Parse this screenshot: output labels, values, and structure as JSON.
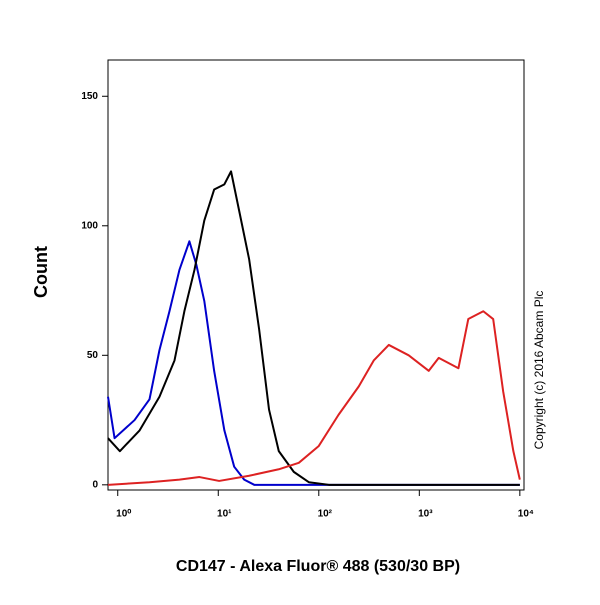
{
  "chart_data": {
    "type": "line",
    "xlabel": "CD147 - Alexa Fluor® 488 (530/30 BP)",
    "ylabel": "Count",
    "annotation": "Copyright (c) 2016 Abcam Plc",
    "xscale": "log",
    "xlim": [
      0.8,
      11000
    ],
    "ylim": [
      -2,
      164
    ],
    "xticks": [
      {
        "value": 1,
        "label": "10⁰"
      },
      {
        "value": 10,
        "label": "10¹"
      },
      {
        "value": 100,
        "label": "10²"
      },
      {
        "value": 1000,
        "label": "10³"
      },
      {
        "value": 10000,
        "label": "10⁴"
      }
    ],
    "yticks": [
      0,
      50,
      100,
      150
    ],
    "series": [
      {
        "color": "#0000cc",
        "x": [
          0.8,
          0.93,
          1.47,
          2.07,
          2.6,
          3.27,
          4.11,
          5.16,
          6.05,
          7.26,
          9.1,
          11.5,
          14.4,
          18.1,
          22.8,
          10000
        ],
        "values": [
          34,
          18,
          25,
          33,
          52,
          67,
          83,
          94,
          85,
          71,
          44,
          21,
          7,
          2,
          0,
          0
        ]
      },
      {
        "color": "#000000",
        "x": [
          0.8,
          1.05,
          1.65,
          2.6,
          3.67,
          4.6,
          5.8,
          7.26,
          9.1,
          11.5,
          13.4,
          16.1,
          20.3,
          25.5,
          32,
          40,
          56.4,
          79.6,
          126,
          10000
        ],
        "values": [
          18,
          13,
          21,
          34,
          48,
          67,
          83,
          102,
          114,
          116,
          121,
          106,
          87,
          60,
          29,
          13,
          5,
          1,
          0,
          0
        ]
      },
      {
        "color": "#dd2222",
        "x": [
          0.8,
          2.07,
          4.11,
          6.5,
          10.2,
          20.3,
          40,
          63.3,
          100,
          157,
          250,
          352,
          497,
          784,
          1240,
          1560,
          2450,
          3070,
          4330,
          5430,
          6830,
          8620,
          10000
        ],
        "values": [
          0,
          1,
          2,
          3,
          1.5,
          3.5,
          6,
          8.5,
          15,
          27,
          38,
          48,
          54,
          50,
          44,
          49,
          45,
          64,
          67,
          64,
          36,
          13,
          2
        ]
      }
    ]
  }
}
